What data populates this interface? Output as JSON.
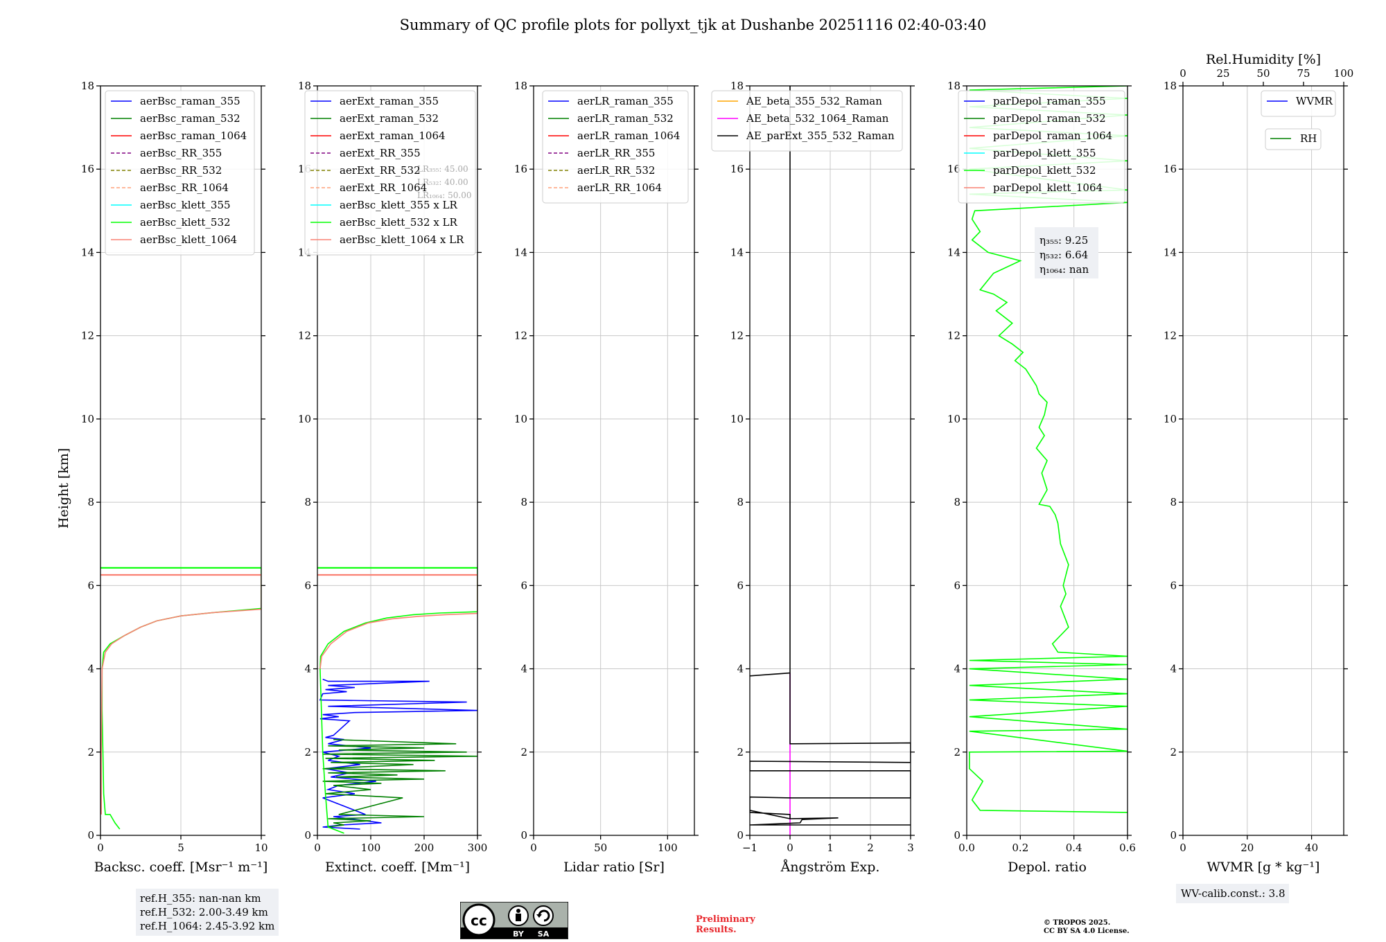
{
  "title": "Summary of QC profile plots for pollyxt_tjk at Dushanbe 20251116 02:40-03:40",
  "y_label": "Height [km]",
  "y_ticks": [
    "0",
    "2",
    "4",
    "6",
    "8",
    "10",
    "12",
    "14",
    "16",
    "18"
  ],
  "chart_data": [
    {
      "type": "line",
      "xlabel": "Backsc. coeff. [Msr⁻¹ m⁻¹]",
      "xlim": [
        0,
        10
      ],
      "ylim": [
        0,
        18
      ],
      "x_ticks": [
        "0",
        "5",
        "10"
      ],
      "legend": [
        "aerBsc_raman_355",
        "aerBsc_raman_532",
        "aerBsc_raman_1064",
        "aerBsc_RR_355",
        "aerBsc_RR_532",
        "aerBsc_RR_1064",
        "aerBsc_klett_355",
        "aerBsc_klett_532",
        "aerBsc_klett_1064"
      ],
      "series": [
        {
          "name": "aerBsc_klett_532",
          "x": [
            1.2,
            0.9,
            0.6,
            0.3,
            0.2,
            0.15,
            0.1,
            0.1,
            0.2,
            0.6,
            1.5,
            2.5,
            3.5,
            5,
            7,
            10,
            10,
            0,
            0,
            10
          ],
          "y": [
            0.15,
            0.3,
            0.5,
            0.5,
            1.0,
            2.0,
            3.0,
            4.0,
            4.4,
            4.6,
            4.8,
            5.0,
            5.15,
            5.27,
            5.35,
            5.45,
            6.42,
            6.42,
            6.43,
            6.43
          ]
        },
        {
          "name": "aerBsc_klett_1064",
          "x": [
            0.05,
            0.05,
            0.1,
            0.3,
            0.7,
            1.5,
            2.5,
            3.5,
            5,
            7,
            10,
            10,
            0,
            0,
            10
          ],
          "y": [
            0.5,
            2.0,
            4.0,
            4.4,
            4.6,
            4.8,
            5.0,
            5.15,
            5.27,
            5.35,
            5.43,
            6.25,
            6.25,
            6.26,
            6.26
          ]
        }
      ]
    },
    {
      "type": "line",
      "xlabel": "Extinct. coeff. [Mm⁻¹]",
      "xlim": [
        0,
        300
      ],
      "ylim": [
        0,
        18
      ],
      "x_ticks": [
        "0",
        "100",
        "200",
        "300"
      ],
      "legend": [
        "aerExt_raman_355",
        "aerExt_raman_532",
        "aerExt_raman_1064",
        "aerExt_RR_355",
        "aerExt_RR_532",
        "aerExt_RR_1064",
        "aerBsc_klett_355 x LR",
        "aerBsc_klett_532 x LR",
        "aerBsc_klett_1064 x LR"
      ],
      "lr_labels": [
        "LR₃₅₅: 45.00",
        "LR₅₃₂: 40.00",
        "LR₁₀₆₄: 50.00"
      ],
      "series": [
        {
          "name": "aerExt_raman_355",
          "x": [
            10,
            20,
            210,
            20,
            70,
            15,
            55,
            10,
            5,
            280,
            20,
            300,
            70,
            10,
            40,
            5,
            60,
            30,
            15,
            50,
            20,
            100,
            10,
            40,
            20,
            80,
            15,
            60,
            25,
            110,
            40,
            20,
            70,
            10,
            90,
            30,
            60,
            120,
            45,
            10,
            80
          ],
          "y": [
            3.75,
            3.7,
            3.7,
            3.6,
            3.55,
            3.5,
            3.45,
            3.4,
            3.25,
            3.2,
            3.1,
            3.0,
            2.95,
            2.9,
            2.85,
            2.8,
            2.75,
            2.4,
            2.35,
            2.3,
            2.2,
            2.1,
            2.0,
            1.9,
            1.8,
            1.7,
            1.6,
            1.5,
            1.4,
            1.3,
            1.2,
            1.1,
            1.0,
            0.9,
            0.5,
            0.45,
            0.4,
            0.3,
            0.25,
            0.2,
            0.15
          ]
        },
        {
          "name": "aerExt_raman_532",
          "x": [
            30,
            260,
            20,
            200,
            40,
            280,
            10,
            300,
            15,
            220,
            25,
            180,
            10,
            240,
            20,
            150,
            35,
            200,
            10,
            120,
            30,
            100,
            15,
            160,
            40,
            200,
            20,
            100,
            30,
            50,
            20
          ],
          "y": [
            2.3,
            2.2,
            2.15,
            2.1,
            2.05,
            2.0,
            1.95,
            1.9,
            1.85,
            1.8,
            1.75,
            1.7,
            1.6,
            1.55,
            1.5,
            1.45,
            1.4,
            1.35,
            1.3,
            1.25,
            1.2,
            1.1,
            1.0,
            0.9,
            0.5,
            0.45,
            0.4,
            0.35,
            0.3,
            0.25,
            0.2
          ]
        },
        {
          "name": "aerBsc_klett_532 x LR",
          "x": [
            50,
            20,
            15,
            10,
            5,
            6,
            20,
            50,
            90,
            130,
            180,
            230,
            300,
            300,
            0,
            0,
            300
          ],
          "y": [
            0.05,
            0.2,
            1.0,
            2.0,
            4.0,
            4.3,
            4.6,
            4.9,
            5.1,
            5.22,
            5.3,
            5.34,
            5.37,
            6.42,
            6.42,
            6.43,
            6.43
          ]
        },
        {
          "name": "aerBsc_klett_1064 x LR",
          "x": [
            5,
            8,
            25,
            55,
            95,
            140,
            190,
            240,
            300,
            300,
            0,
            0,
            300
          ],
          "y": [
            4.0,
            4.3,
            4.6,
            4.9,
            5.1,
            5.2,
            5.26,
            5.3,
            5.33,
            6.25,
            6.25,
            6.26,
            6.26
          ]
        }
      ]
    },
    {
      "type": "line",
      "xlabel": "Lidar ratio [Sr]",
      "xlim": [
        0,
        120
      ],
      "ylim": [
        0,
        18
      ],
      "x_ticks": [
        "0",
        "50",
        "100"
      ],
      "legend": [
        "aerLR_raman_355",
        "aerLR_raman_532",
        "aerLR_raman_1064",
        "aerLR_RR_355",
        "aerLR_RR_532",
        "aerLR_RR_1064"
      ],
      "series": []
    },
    {
      "type": "line",
      "xlabel": "Ångström Exp.",
      "xlim": [
        -1,
        3
      ],
      "ylim": [
        0,
        18
      ],
      "x_ticks": [
        "−1",
        "0",
        "1",
        "2",
        "3"
      ],
      "legend": [
        "AE_beta_355_532_Raman",
        "AE_beta_532_1064_Raman",
        "AE_parExt_355_532_Raman"
      ],
      "series": [
        {
          "name": "AE_beta_532_1064_Raman",
          "x": [
            0,
            0
          ],
          "y": [
            0,
            3.9
          ]
        },
        {
          "name": "AE_parExt_355_532_Raman",
          "x": [
            0,
            0,
            -1,
            0,
            0,
            3,
            3,
            -1,
            -1,
            3,
            3,
            0,
            0,
            -1,
            -1,
            0,
            0,
            -1,
            0,
            0,
            1.2,
            0.3,
            0.25,
            -1,
            3
          ],
          "y": [
            18,
            3.9,
            3.83,
            3.9,
            2.2,
            2.22,
            1.75,
            1.78,
            1.55,
            1.55,
            0.9,
            0.9,
            0.9,
            0.92,
            0.55,
            0.5,
            0.4,
            0.6,
            0.4,
            0.4,
            0.42,
            0.38,
            0.3,
            0.25,
            0.25
          ]
        }
      ]
    },
    {
      "type": "line",
      "xlabel": "Depol. ratio",
      "xlim": [
        0,
        0.6
      ],
      "ylim": [
        0,
        18
      ],
      "x_ticks": [
        "0.0",
        "0.2",
        "0.4",
        "0.6"
      ],
      "legend": [
        "parDepol_raman_355",
        "parDepol_raman_532",
        "parDepol_raman_1064",
        "parDepol_klett_355",
        "parDepol_klett_532",
        "parDepol_klett_1064"
      ],
      "eta_labels": [
        "η₃₅₅: 9.25",
        "η₅₃₂: 6.64",
        "η₁₀₆₄: nan"
      ],
      "series": [
        {
          "name": "parDepol_klett_532",
          "x": [
            0.6,
            0.05,
            0.02,
            0.06,
            0.01,
            0.01,
            0.6,
            0.01,
            0.6,
            0.01,
            0.6,
            0.01,
            0.6,
            0.01,
            0.6,
            0.01,
            0.6,
            0.01,
            0.6,
            0.34,
            0.32,
            0.38,
            0.35,
            0.37,
            0.36,
            0.38,
            0.35,
            0.34,
            0.33,
            0.31,
            0.27,
            0.3,
            0.28,
            0.3,
            0.26,
            0.29,
            0.27,
            0.29,
            0.3,
            0.27,
            0.26,
            0.24,
            0.22,
            0.18,
            0.21,
            0.17,
            0.12,
            0.17,
            0.11,
            0.15,
            0.1,
            0.05,
            0.1,
            0.2,
            0.08,
            0.02,
            0.05,
            0.02,
            0.03,
            0.6,
            0.01,
            0.6,
            0.01,
            0.6,
            0.01,
            0.6,
            0.01,
            0.6,
            0.01,
            0.6,
            0.01,
            0.6
          ],
          "y": [
            0.55,
            0.6,
            0.85,
            1.3,
            1.6,
            2.0,
            2.02,
            2.5,
            2.55,
            2.85,
            3.1,
            3.25,
            3.4,
            3.6,
            3.75,
            4.0,
            4.1,
            4.2,
            4.3,
            4.4,
            4.6,
            5.0,
            5.5,
            5.8,
            6.0,
            6.5,
            7.0,
            7.5,
            7.7,
            7.9,
            7.95,
            8.3,
            8.7,
            9.0,
            9.3,
            9.6,
            9.8,
            10.1,
            10.4,
            10.6,
            10.8,
            11.0,
            11.2,
            11.4,
            11.6,
            11.8,
            12.0,
            12.3,
            12.6,
            12.8,
            13.0,
            13.1,
            13.5,
            13.8,
            14.0,
            14.3,
            14.5,
            14.8,
            15.0,
            15.2,
            15.4,
            15.5,
            16.0,
            16.2,
            16.5,
            16.8,
            17.0,
            17.3,
            17.5,
            17.7,
            17.9,
            18.0
          ]
        }
      ]
    },
    {
      "type": "line",
      "xlabel": "WVMR [g * kg⁻¹]",
      "top_xlabel": "Rel.Humidity [%]",
      "xlim": [
        0,
        50
      ],
      "top_xlim": [
        0,
        100
      ],
      "ylim": [
        0,
        18
      ],
      "x_ticks": [
        "0",
        "20",
        "40"
      ],
      "top_x_ticks": [
        "0",
        "25",
        "50",
        "75",
        "100"
      ],
      "legend": [
        "WVMR"
      ],
      "legend2": [
        "RH"
      ],
      "wv_calib": "WV-calib.const.: 3.8",
      "series": []
    }
  ],
  "ref_heights": [
    "ref.H_355: nan-nan km",
    "ref.H_532: 2.00-3.49 km",
    "ref.H_1064: 2.45-3.92 km"
  ],
  "cc_badge": {
    "left": "BY",
    "right": "SA"
  },
  "preliminary": [
    "Preliminary",
    "Results."
  ],
  "copyright": [
    "© TROPOS 2025.",
    "CC BY SA 4.0 License."
  ],
  "colors": {
    "raman_355": "#0000ff",
    "raman_532": "#008000",
    "raman_1064": "#ff0000",
    "rr_355": "#800080",
    "rr_532": "#808000",
    "rr_1064": "#ffa07a",
    "klett_355": "#00ffff",
    "klett_532": "#00ff00",
    "klett_1064": "#fa8072",
    "ae_355_532": "#ffa500",
    "ae_532_1064": "#ff00ff",
    "ae_parext": "#000000",
    "preliminary": "#e8262b",
    "box_bg": "#eef0f4"
  }
}
